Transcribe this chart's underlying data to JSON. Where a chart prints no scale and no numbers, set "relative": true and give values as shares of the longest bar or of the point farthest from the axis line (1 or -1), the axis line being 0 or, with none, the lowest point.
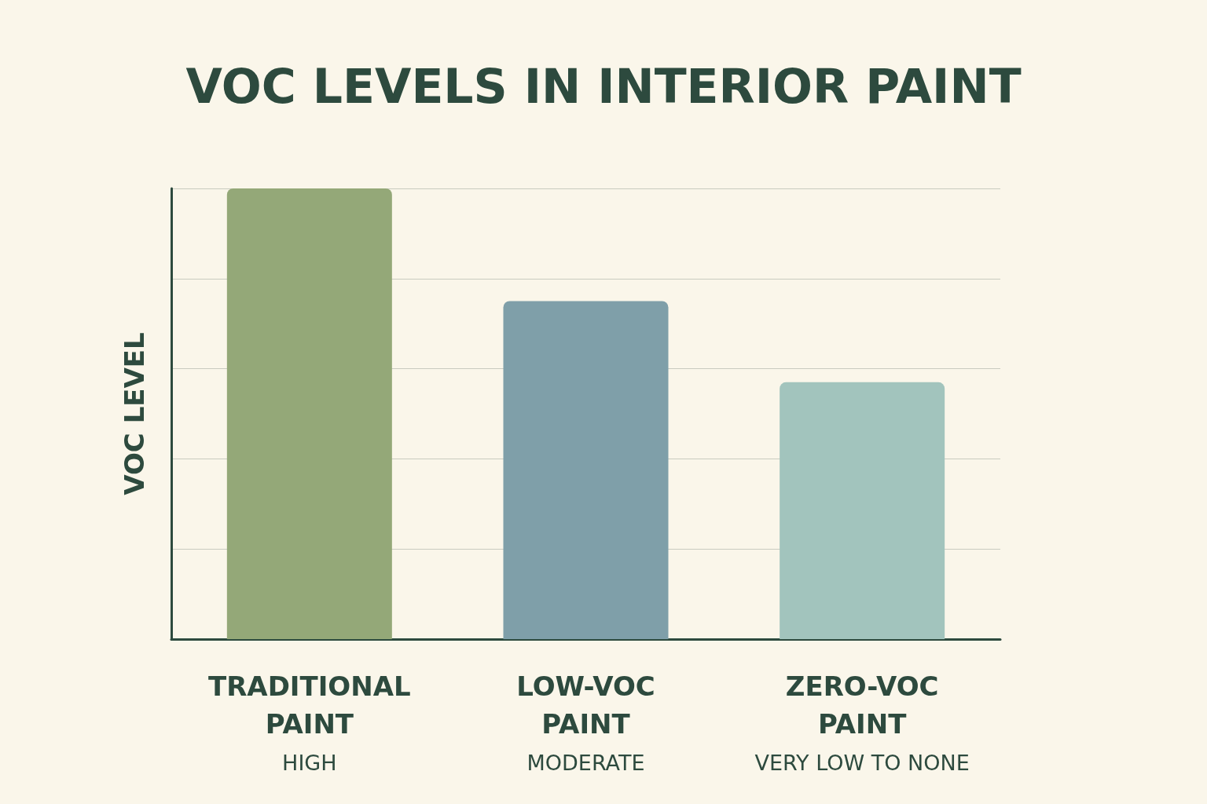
{
  "chart_data": {
    "type": "bar",
    "title": "VOC LEVELS IN INTERIOR PAINT",
    "ylabel": "VOC LEVEL",
    "categories": [
      "TRADITIONAL PAINT",
      "LOW-VOC PAINT",
      "ZERO-VOC PAINT"
    ],
    "values": [
      1,
      0.75,
      0.57
    ],
    "annotations": [
      "HIGH",
      "MODERATE",
      "VERY LOW TO NONE"
    ],
    "colors": [
      "#94a878",
      "#7f9fa9",
      "#a2c4bd"
    ],
    "relative": true,
    "grid": true
  }
}
